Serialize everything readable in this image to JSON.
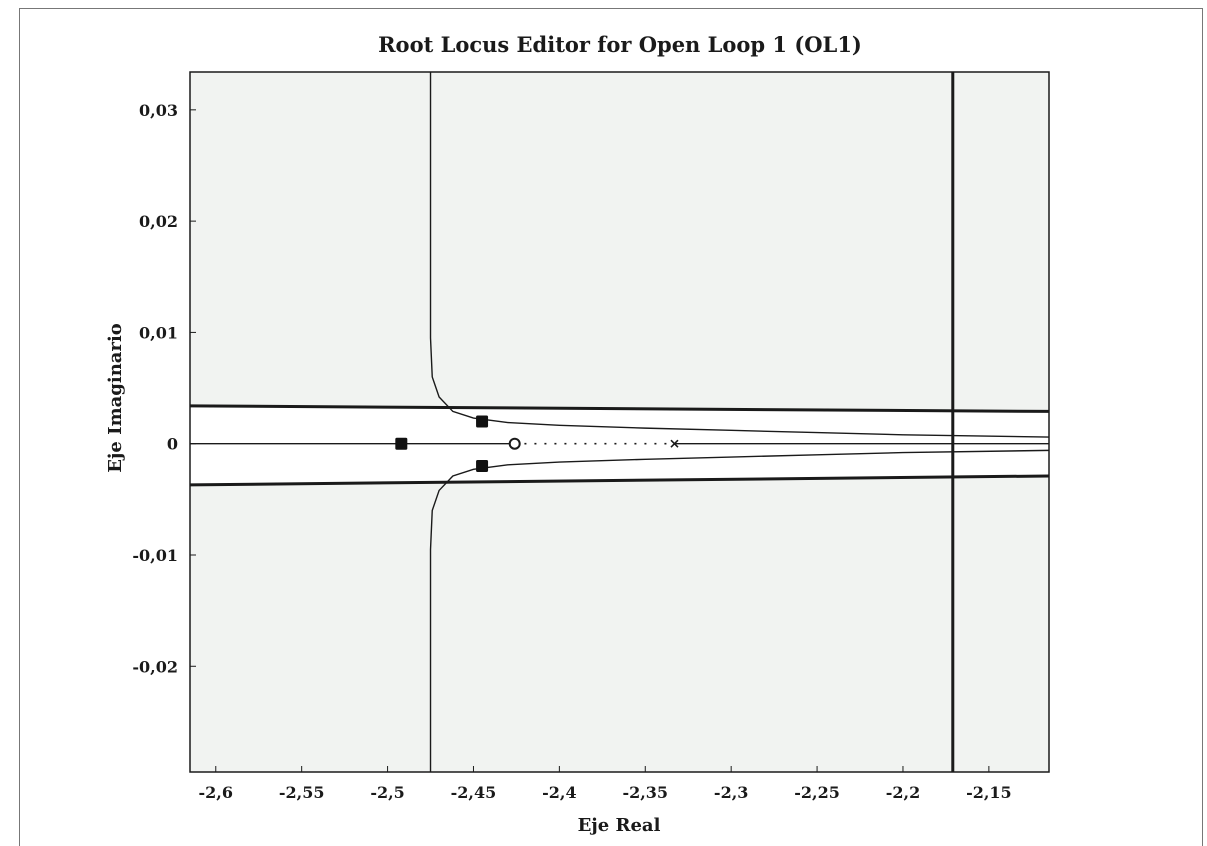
{
  "chart_data": {
    "type": "root-locus",
    "title": "Root Locus Editor for Open Loop 1 (OL1)",
    "xlabel": "Eje Real",
    "ylabel": "Eje Imaginario",
    "xlim": [
      -2.615,
      -2.115
    ],
    "ylim": [
      -0.0295,
      0.0334
    ],
    "x_ticks": [
      {
        "value": -2.6,
        "label": "-2,6"
      },
      {
        "value": -2.55,
        "label": "-2,55"
      },
      {
        "value": -2.5,
        "label": "-2,5"
      },
      {
        "value": -2.45,
        "label": "-2,45"
      },
      {
        "value": -2.4,
        "label": "-2,4"
      },
      {
        "value": -2.35,
        "label": "-2,35"
      },
      {
        "value": -2.3,
        "label": "-2,3"
      },
      {
        "value": -2.25,
        "label": "-2,25"
      },
      {
        "value": -2.2,
        "label": "-2,2"
      },
      {
        "value": -2.15,
        "label": "-2,15"
      }
    ],
    "y_ticks": [
      {
        "value": 0.03,
        "label": "0,03"
      },
      {
        "value": 0.02,
        "label": "0,02"
      },
      {
        "value": 0.01,
        "label": "0,01"
      },
      {
        "value": 0,
        "label": "0"
      },
      {
        "value": -0.01,
        "label": "-0,01"
      },
      {
        "value": -0.02,
        "label": "-0,02"
      }
    ],
    "grid": false,
    "background_color": "#f1f3f1",
    "stable_region_color": "#ffffff",
    "line_color": "#1a1a1a",
    "vertical_constraint_x": -2.171,
    "upper_constraint": {
      "x": [
        -2.615,
        -2.115
      ],
      "y": [
        0.0034,
        0.0029
      ]
    },
    "lower_constraint": {
      "x": [
        -2.615,
        -2.115
      ],
      "y": [
        -0.0037,
        -0.0029
      ]
    },
    "loci": [
      {
        "branch": "upper",
        "x": [
          -2.475,
          -2.475,
          -2.474,
          -2.47,
          -2.462,
          -2.45,
          -2.43,
          -2.4,
          -2.35,
          -2.3,
          -2.25,
          -2.2,
          -2.115
        ],
        "y": [
          0.0334,
          0.0095,
          0.006,
          0.0042,
          0.0029,
          0.0023,
          0.0019,
          0.00165,
          0.0014,
          0.0012,
          0.001,
          0.0008,
          0.0006
        ]
      },
      {
        "branch": "lower",
        "x": [
          -2.475,
          -2.475,
          -2.474,
          -2.47,
          -2.462,
          -2.45,
          -2.43,
          -2.4,
          -2.35,
          -2.3,
          -2.25,
          -2.2,
          -2.115
        ],
        "y": [
          -0.0295,
          -0.0095,
          -0.006,
          -0.0042,
          -0.0029,
          -0.0023,
          -0.0019,
          -0.00165,
          -0.0014,
          -0.0012,
          -0.001,
          -0.0008,
          -0.0006
        ]
      },
      {
        "branch": "real-left",
        "x": [
          -2.615,
          -2.425
        ],
        "y": [
          0,
          0
        ]
      },
      {
        "branch": "real-right",
        "x": [
          -2.333,
          -2.115
        ],
        "y": [
          0,
          0
        ]
      }
    ],
    "dotted_segment": {
      "x": [
        -2.425,
        -2.333
      ],
      "y": [
        0,
        0
      ]
    },
    "closed_loop_poles": [
      {
        "x": -2.492,
        "y": 0
      },
      {
        "x": -2.445,
        "y": 0.002
      },
      {
        "x": -2.445,
        "y": -0.002
      }
    ],
    "zeros": [
      {
        "x": -2.426,
        "y": 0
      }
    ],
    "open_loop_poles": [
      {
        "x": -2.333,
        "y": 0
      }
    ]
  }
}
